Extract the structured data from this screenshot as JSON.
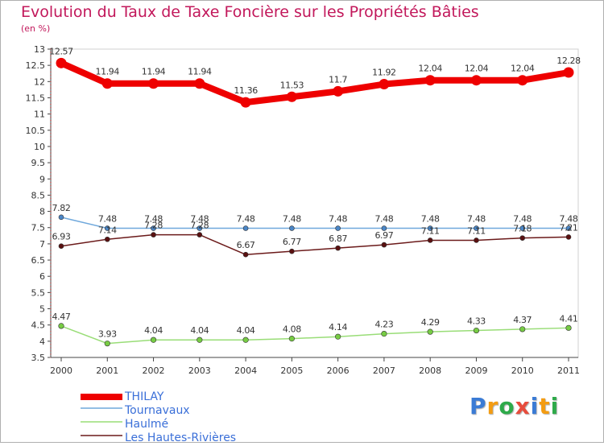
{
  "chart_data": {
    "type": "line",
    "title": "Evolution du Taux de Taxe Foncière sur les Propriétés Bâties",
    "ylabel": "(en %)",
    "ylim": [
      3.5,
      13
    ],
    "yticks": [
      "3.5",
      "4",
      "4.5",
      "5",
      "5.5",
      "6",
      "6.5",
      "7",
      "7.5",
      "8",
      "8.5",
      "9",
      "9.5",
      "10",
      "10.5",
      "11",
      "11.5",
      "12",
      "12.5",
      "13"
    ],
    "x": [
      "2000",
      "2001",
      "2002",
      "2003",
      "2004",
      "2005",
      "2006",
      "2007",
      "2008",
      "2009",
      "2010",
      "2011"
    ],
    "series": [
      {
        "name": "THILAY",
        "color": "#ee0000",
        "values": [
          12.57,
          11.94,
          11.94,
          11.94,
          11.36,
          11.53,
          11.7,
          11.92,
          12.04,
          12.04,
          12.04,
          12.28
        ],
        "labels": [
          "12.57",
          "11.94",
          "11.94",
          "11.94",
          "11.36",
          "11.53",
          "11.7",
          "11.92",
          "12.04",
          "12.04",
          "12.04",
          "12.28"
        ]
      },
      {
        "name": "Tournavaux",
        "color": "#6fa8dc",
        "values": [
          7.82,
          7.48,
          7.48,
          7.48,
          7.48,
          7.48,
          7.48,
          7.48,
          7.48,
          7.48,
          7.48,
          7.48
        ],
        "labels": [
          "7.82",
          "7.48",
          "7.48",
          "7.48",
          "7.48",
          "7.48",
          "7.48",
          "7.48",
          "7.48",
          "7.48",
          "7.48",
          "7.48"
        ]
      },
      {
        "name": "Haulmé",
        "color": "#99dd77",
        "values": [
          4.47,
          3.93,
          4.04,
          4.04,
          4.04,
          4.08,
          4.14,
          4.23,
          4.29,
          4.33,
          4.37,
          4.41
        ],
        "labels": [
          "4.47",
          "3.93",
          "4.04",
          "4.04",
          "4.04",
          "4.08",
          "4.14",
          "4.23",
          "4.29",
          "4.33",
          "4.37",
          "4.41"
        ]
      },
      {
        "name": "Les Hautes-Rivières",
        "color": "#6b1a1a",
        "values": [
          6.93,
          7.14,
          7.28,
          7.28,
          6.67,
          6.77,
          6.87,
          6.97,
          7.11,
          7.11,
          7.18,
          7.21
        ],
        "labels": [
          "6.93",
          "7.14",
          "7.28",
          "7.28",
          "6.67",
          "6.77",
          "6.87",
          "6.97",
          "7.11",
          "7.11",
          "7.18",
          "7.21"
        ]
      }
    ],
    "grid": false,
    "legend": "bottom-left"
  },
  "logo": {
    "letters": [
      "P",
      "r",
      "o",
      "x",
      "i",
      "t",
      "i"
    ],
    "colors": [
      "#3a7bd5",
      "#f39c12",
      "#2eaa4a",
      "#e74c3c",
      "#3a7bd5",
      "#f39c12",
      "#2eaa4a"
    ]
  }
}
